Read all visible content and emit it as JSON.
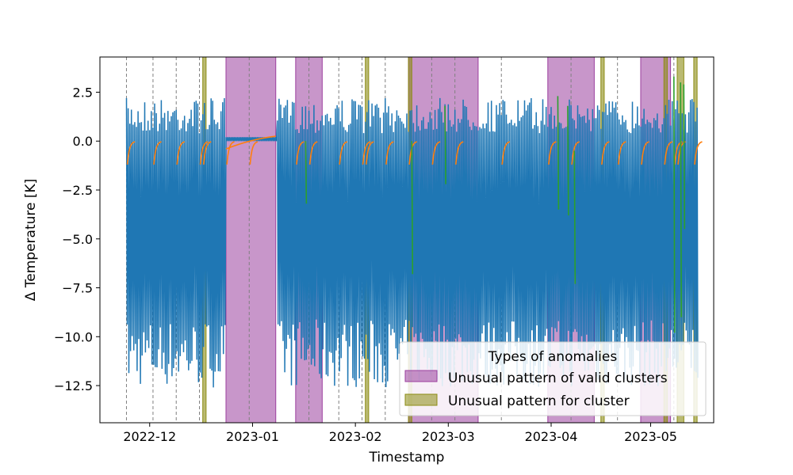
{
  "chart_data": {
    "type": "line",
    "xlabel": "Timestamp",
    "ylabel": "Δ Temperature [K]",
    "x_axis": "date",
    "xlim": [
      "2022-11-16",
      "2023-05-20"
    ],
    "ylim": [
      -14.4,
      4.3
    ],
    "x_ticks": [
      "2022-12-01",
      "2023-01-01",
      "2023-02-01",
      "2023-03-01",
      "2023-04-01",
      "2023-05-01"
    ],
    "x_tick_labels": [
      "2022-12",
      "2023-01",
      "2023-02",
      "2023-03",
      "2023-04",
      "2023-05"
    ],
    "y_ticks": [
      2.5,
      0.0,
      -2.5,
      -5.0,
      -7.5,
      -10.0,
      -12.5
    ],
    "y_tick_labels": [
      "2.5",
      "0.0",
      "−2.5",
      "−5.0",
      "−7.5",
      "−10.0",
      "−12.5"
    ],
    "grid": false,
    "series_colors": [
      "#1f77b4",
      "#ff7f0e",
      "#2ca02c"
    ],
    "cluster_boundaries": [
      "2022-11-24",
      "2022-12-02",
      "2022-12-09",
      "2022-12-16",
      "2022-12-31",
      "2023-01-18",
      "2023-01-27",
      "2023-02-03",
      "2023-02-10",
      "2023-02-24",
      "2023-03-03",
      "2023-03-17",
      "2023-04-07",
      "2023-04-21",
      "2023-05-08"
    ],
    "anomaly_regions": [
      {
        "type": "valid_clusters",
        "start": "2022-12-24",
        "end": "2023-01-08"
      },
      {
        "type": "valid_clusters",
        "start": "2023-01-14",
        "end": "2023-01-22"
      },
      {
        "type": "valid_clusters",
        "start": "2023-02-17",
        "end": "2023-03-10"
      },
      {
        "type": "valid_clusters",
        "start": "2023-03-31",
        "end": "2023-04-14"
      },
      {
        "type": "valid_clusters",
        "start": "2023-04-28",
        "end": "2023-05-07"
      },
      {
        "type": "cluster",
        "start": "2022-12-17",
        "end": "2022-12-18"
      },
      {
        "type": "cluster",
        "start": "2023-02-04",
        "end": "2023-02-05"
      },
      {
        "type": "cluster",
        "start": "2023-02-17",
        "end": "2023-02-18"
      },
      {
        "type": "cluster",
        "start": "2023-04-16",
        "end": "2023-04-17"
      },
      {
        "type": "cluster",
        "start": "2023-05-05",
        "end": "2023-05-06"
      },
      {
        "type": "cluster",
        "start": "2023-05-09",
        "end": "2023-05-11"
      },
      {
        "type": "cluster",
        "start": "2023-05-14",
        "end": "2023-05-15"
      }
    ],
    "normal_range": [
      -12.6,
      2.2
    ],
    "anomaly_spikes": [
      {
        "date": "2023-01-17",
        "min": -3.2,
        "max": 0.0
      },
      {
        "date": "2023-02-18",
        "min": -6.8,
        "max": 0.0
      },
      {
        "date": "2023-02-28",
        "min": -2.2,
        "max": 1.8
      },
      {
        "date": "2023-04-03",
        "min": -3.5,
        "max": 2.3
      },
      {
        "date": "2023-04-06",
        "min": -3.8,
        "max": 1.8
      },
      {
        "date": "2023-04-08",
        "min": -7.3,
        "max": -0.5
      },
      {
        "date": "2023-05-08",
        "min": -9.8,
        "max": 3.3
      },
      {
        "date": "2023-05-10",
        "min": -9.0,
        "max": 3.0
      },
      {
        "date": "2023-05-11",
        "min": -4.5,
        "max": 2.9
      }
    ],
    "legend": {
      "title": "Types of anomalies",
      "placement": "lower-right",
      "entries": [
        {
          "label": "Unusual pattern of valid clusters",
          "color": "#9b3f9e"
        },
        {
          "label": "Unusual pattern for cluster",
          "color": "#8c8c14"
        }
      ]
    }
  }
}
